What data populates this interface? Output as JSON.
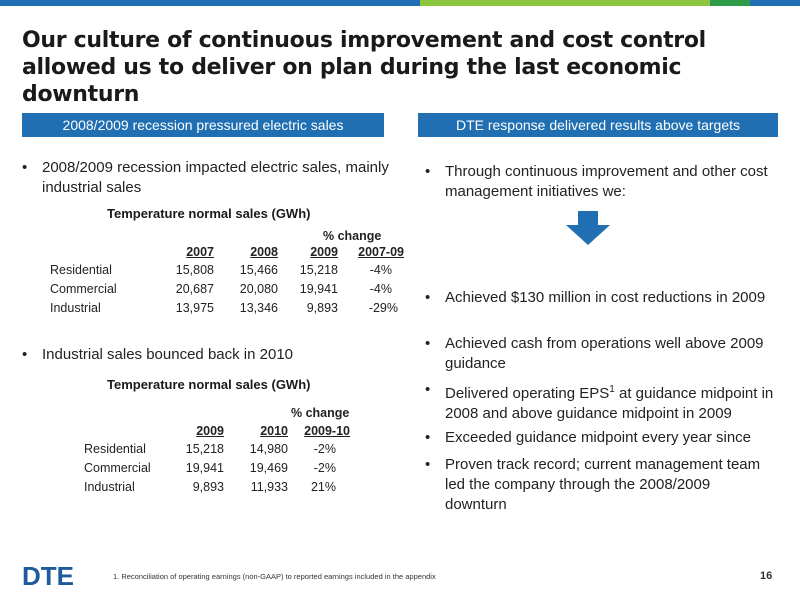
{
  "colors": {
    "header_bg": "#1f6fb2",
    "arrow": "#1f6fb2",
    "logo": "#1f5a9e",
    "topbar": [
      "#1f6fb2",
      "#8dc63f",
      "#1f6fb2",
      "#8dc63f",
      "#1f6fb2"
    ]
  },
  "title": "Our culture of continuous improvement and cost control allowed us to deliver on plan during the last economic downturn",
  "left": {
    "header": "2008/2009 recession pressured electric sales",
    "bullet1": "2008/2009 recession impacted electric sales, mainly industrial sales",
    "table1": {
      "title": "Temperature normal sales (GWh)",
      "change_label_top": "% change",
      "columns": [
        "2007",
        "2008",
        "2009",
        "2007-09"
      ],
      "rows": [
        {
          "label": "Residential",
          "values": [
            "15,808",
            "15,466",
            "15,218",
            "-4%"
          ]
        },
        {
          "label": "Commercial",
          "values": [
            "20,687",
            "20,080",
            "19,941",
            "-4%"
          ]
        },
        {
          "label": "Industrial",
          "values": [
            "13,975",
            "13,346",
            "9,893",
            "-29%"
          ]
        }
      ]
    },
    "bullet2": "Industrial sales bounced back in 2010",
    "table2": {
      "title": "Temperature normal sales (GWh)",
      "change_label_top": "% change",
      "columns": [
        "2009",
        "2010",
        "2009-10"
      ],
      "rows": [
        {
          "label": "Residential",
          "values": [
            "15,218",
            "14,980",
            "-2%"
          ]
        },
        {
          "label": "Commercial",
          "values": [
            "19,941",
            "19,469",
            "-2%"
          ]
        },
        {
          "label": "Industrial",
          "values": [
            "9,893",
            "11,933",
            "21%"
          ]
        }
      ]
    }
  },
  "right": {
    "header": "DTE response delivered results above targets",
    "intro": "Through continuous improvement and other cost management initiatives we:",
    "bullets": [
      "Achieved $130 million in cost reductions in 2009",
      "Achieved cash from operations well above 2009 guidance",
      "Delivered operating EPS",
      "Exceeded guidance midpoint every year since",
      "Proven track record; current management team led the company through the 2008/2009 downturn"
    ],
    "eps_sup": "1",
    "eps_rest": " at guidance midpoint in 2008 and above guidance midpoint in 2009"
  },
  "footer": {
    "logo_text": "DTE",
    "footnote": "1. Reconciliation of operating earnings (non-GAAP) to reported earnings included in the appendix",
    "page_number": "16"
  }
}
